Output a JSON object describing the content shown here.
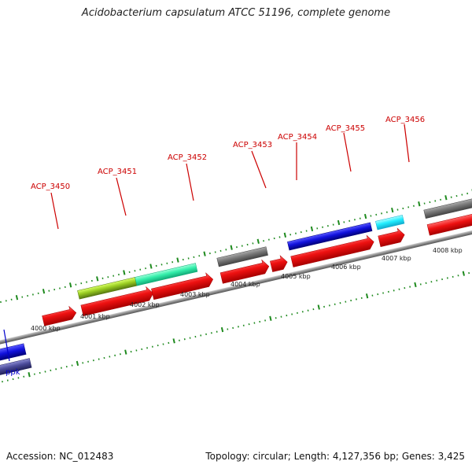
{
  "title": "Acidobacterium capsulatum ATCC 51196, complete genome",
  "footer": {
    "accession": "Accession: NC_012483",
    "stats": "Topology: circular; Length: 4,127,356 bp; Genes: 3,425"
  },
  "colors": {
    "axis": "#8a8a8a",
    "tick": "#1e8a1e",
    "label_red": "#cc0000",
    "label_blue": "#0000cc"
  },
  "scale_labels": [
    "4000 kbp",
    "4001 kbp",
    "4002 kbp",
    "4003 kbp",
    "4004 kbp",
    "4005 kbp",
    "4006 kbp",
    "4007 kbp",
    "4008 kbp"
  ],
  "genes": [
    {
      "label": "ACP_3450",
      "color": "#ee1111"
    },
    {
      "label": "ACP_3451",
      "color": "#ee1111"
    },
    {
      "label": "ACP_3452",
      "color": "#ee1111"
    },
    {
      "label": "ACP_3453",
      "color": "#ee1111"
    },
    {
      "label": "ACP_3454",
      "color": "#ee1111"
    },
    {
      "label": "ACP_3455",
      "color": "#ee1111"
    },
    {
      "label": "ACP_3456",
      "color": "#ee1111"
    },
    {
      "label": "ppk",
      "color": "#1111cc"
    }
  ]
}
